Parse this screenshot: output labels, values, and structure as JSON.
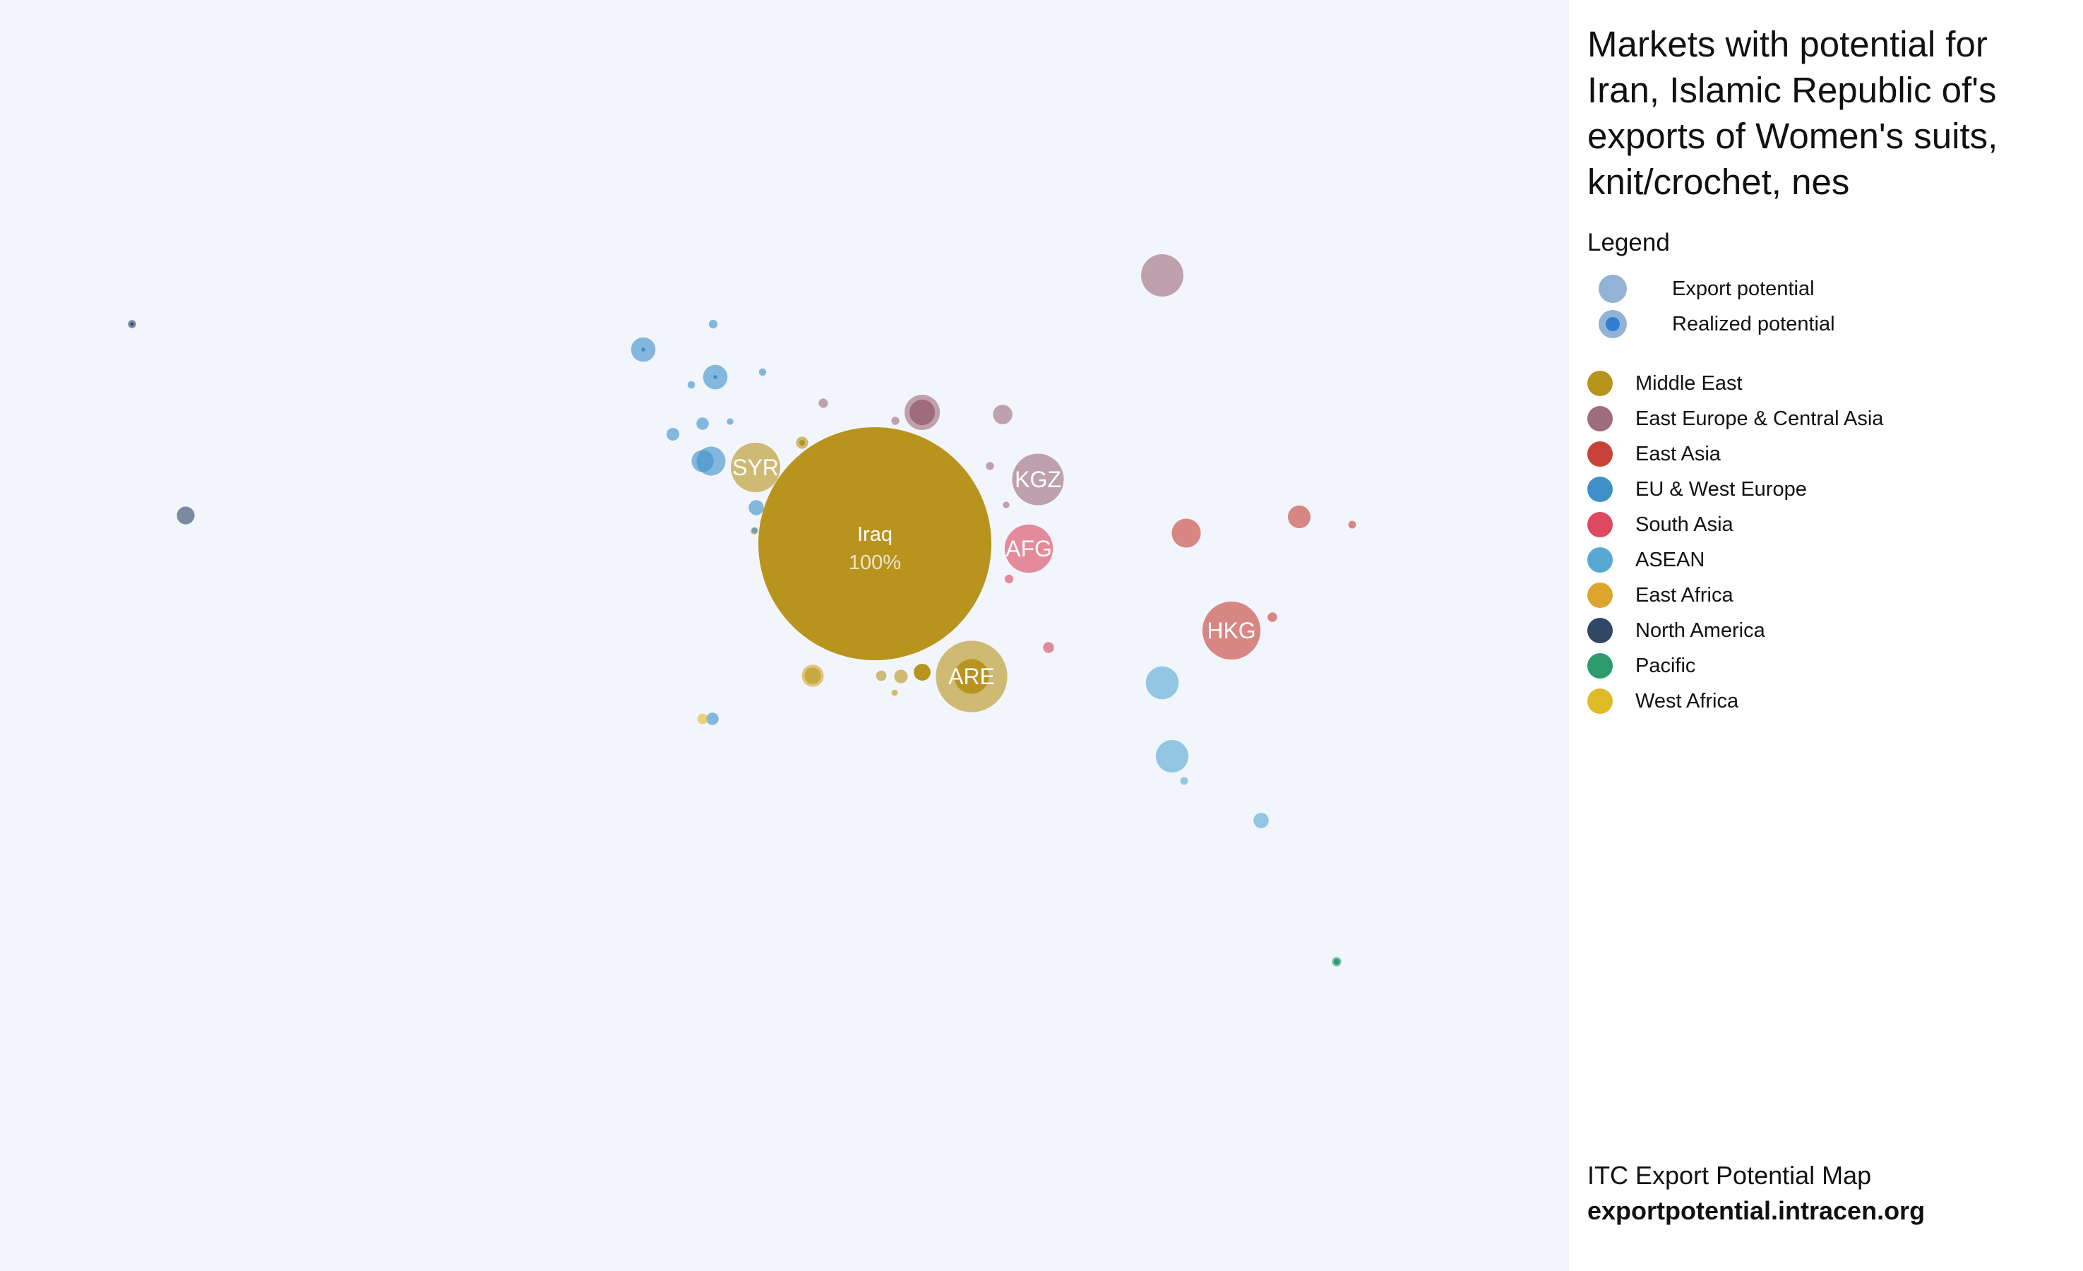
{
  "colors": {
    "Middle East": "#b8941f",
    "East Europe & Central Asia": "#9e6c7c",
    "East Asia": "#c8413a",
    "EU & West Europe": "#3f8fc9",
    "South Asia": "#dc4960",
    "ASEAN": "#57a8d3",
    "East Africa": "#dca52d",
    "North America": "#314766",
    "Pacific": "#2d9a6d",
    "West Africa": "#dfbb28",
    "export_potential": "#93b3d6",
    "realized_potential": "#2f7fd1"
  },
  "title": "Markets with potential for Iran, Islamic Republic of's exports of Women's suits, knit/crochet, nes",
  "legend": {
    "title": "Legend",
    "potential": [
      {
        "label": "Export potential",
        "icon": "export-potential-circle"
      },
      {
        "label": "Realized potential",
        "icon": "realized-potential-circle"
      }
    ],
    "regions": [
      "Middle East",
      "East Europe & Central Asia",
      "East Asia",
      "EU & West Europe",
      "South Asia",
      "ASEAN",
      "East Africa",
      "North America",
      "Pacific",
      "West Africa"
    ]
  },
  "footer": {
    "source": "ITC Export Potential Map",
    "url": "exportpotential.intracen.org"
  },
  "chart_data": {
    "type": "bubble",
    "value_unit": "% of largest market (Iraq)",
    "markets": [
      {
        "label": "Iraq",
        "share_label": "100%",
        "region": "Middle East",
        "potential": 100,
        "realized": 0
      },
      {
        "label": "ARE",
        "region": "Middle East",
        "potential": 9.4,
        "realized": 2.2
      },
      {
        "label": "SYR",
        "region": "Middle East",
        "potential": 4.5,
        "realized": 0
      },
      {
        "label": "HKG",
        "region": "East Asia",
        "potential": 6.2,
        "realized": 0
      },
      {
        "label": "KGZ",
        "region": "East Europe & Central Asia",
        "potential": 4.9,
        "realized": 0
      },
      {
        "label": "AFG",
        "region": "South Asia",
        "potential": 4.3,
        "realized": 0
      },
      {
        "label": "",
        "region": "East Europe & Central Asia",
        "potential": 3.3,
        "realized": 0
      },
      {
        "label": "",
        "region": "East Europe & Central Asia",
        "potential": 2.3,
        "realized": 1.2
      },
      {
        "label": "",
        "region": "East Europe & Central Asia",
        "potential": 0.7,
        "realized": 0
      },
      {
        "label": "",
        "region": "East Europe & Central Asia",
        "potential": 0.16,
        "realized": 0
      },
      {
        "label": "",
        "region": "East Europe & Central Asia",
        "potential": 0.12,
        "realized": 0
      },
      {
        "label": "",
        "region": "East Europe & Central Asia",
        "potential": 0.12,
        "realized": 0
      },
      {
        "label": "",
        "region": "East Europe & Central Asia",
        "potential": 0.08,
        "realized": 0
      },
      {
        "label": "",
        "region": "East Asia",
        "potential": 1.55,
        "realized": 0
      },
      {
        "label": "",
        "region": "East Asia",
        "potential": 0.95,
        "realized": 0
      },
      {
        "label": "",
        "region": "East Asia",
        "potential": 0.17,
        "realized": 0
      },
      {
        "label": "",
        "region": "East Asia",
        "potential": 0.11,
        "realized": 0
      },
      {
        "label": "",
        "region": "South Asia",
        "potential": 0.22,
        "realized": 0
      },
      {
        "label": "",
        "region": "South Asia",
        "potential": 0.14,
        "realized": 0
      },
      {
        "label": "",
        "region": "ASEAN",
        "potential": 2.0,
        "realized": 0
      },
      {
        "label": "",
        "region": "ASEAN",
        "potential": 1.95,
        "realized": 0
      },
      {
        "label": "",
        "region": "ASEAN",
        "potential": 0.43,
        "realized": 0
      },
      {
        "label": "",
        "region": "ASEAN",
        "potential": 0.11,
        "realized": 0
      },
      {
        "label": "",
        "region": "EU & West Europe",
        "potential": 1.55,
        "realized": 0
      },
      {
        "label": "",
        "region": "EU & West Europe",
        "potential": 1.1,
        "realized": 0.03
      },
      {
        "label": "",
        "region": "EU & West Europe",
        "potential": 1.1,
        "realized": 0.03
      },
      {
        "label": "",
        "region": "EU & West Europe",
        "potential": 0.9,
        "realized": 0
      },
      {
        "label": "",
        "region": "EU & West Europe",
        "potential": 0.42,
        "realized": 0
      },
      {
        "label": "",
        "region": "EU & West Europe",
        "potential": 0.3,
        "realized": 0
      },
      {
        "label": "",
        "region": "EU & West Europe",
        "potential": 0.28,
        "realized": 0
      },
      {
        "label": "",
        "region": "EU & West Europe",
        "potential": 0.28,
        "realized": 0
      },
      {
        "label": "",
        "region": "EU & West Europe",
        "potential": 0.14,
        "realized": 0
      },
      {
        "label": "",
        "region": "EU & West Europe",
        "potential": 0.1,
        "realized": 0
      },
      {
        "label": "",
        "region": "EU & West Europe",
        "potential": 0.1,
        "realized": 0
      },
      {
        "label": "",
        "region": "EU & West Europe",
        "potential": 0.08,
        "realized": 0
      },
      {
        "label": "",
        "region": "EU & West Europe",
        "potential": 0.07,
        "realized": 0
      },
      {
        "label": "",
        "region": "Middle East",
        "potential": 0.5,
        "realized": 0
      },
      {
        "label": "",
        "region": "Middle East",
        "potential": 0.52,
        "realized": 0.52
      },
      {
        "label": "",
        "region": "Middle East",
        "potential": 0.34,
        "realized": 0
      },
      {
        "label": "",
        "region": "Middle East",
        "potential": 0.27,
        "realized": 0.06
      },
      {
        "label": "",
        "region": "Middle East",
        "potential": 0.2,
        "realized": 0
      },
      {
        "label": "",
        "region": "Middle East",
        "potential": 0.09,
        "realized": 0
      },
      {
        "label": "",
        "region": "Middle East",
        "potential": 0.07,
        "realized": 0
      },
      {
        "label": "",
        "region": "East Africa",
        "potential": 0.9,
        "realized": 0
      },
      {
        "label": "",
        "region": "North America",
        "potential": 0.58,
        "realized": 0
      },
      {
        "label": "",
        "region": "North America",
        "potential": 0.12,
        "realized": 0.02
      },
      {
        "label": "",
        "region": "Pacific",
        "potential": 0.16,
        "realized": 0.06
      },
      {
        "label": "",
        "region": "West Africa",
        "potential": 0.2,
        "realized": 0
      }
    ]
  }
}
